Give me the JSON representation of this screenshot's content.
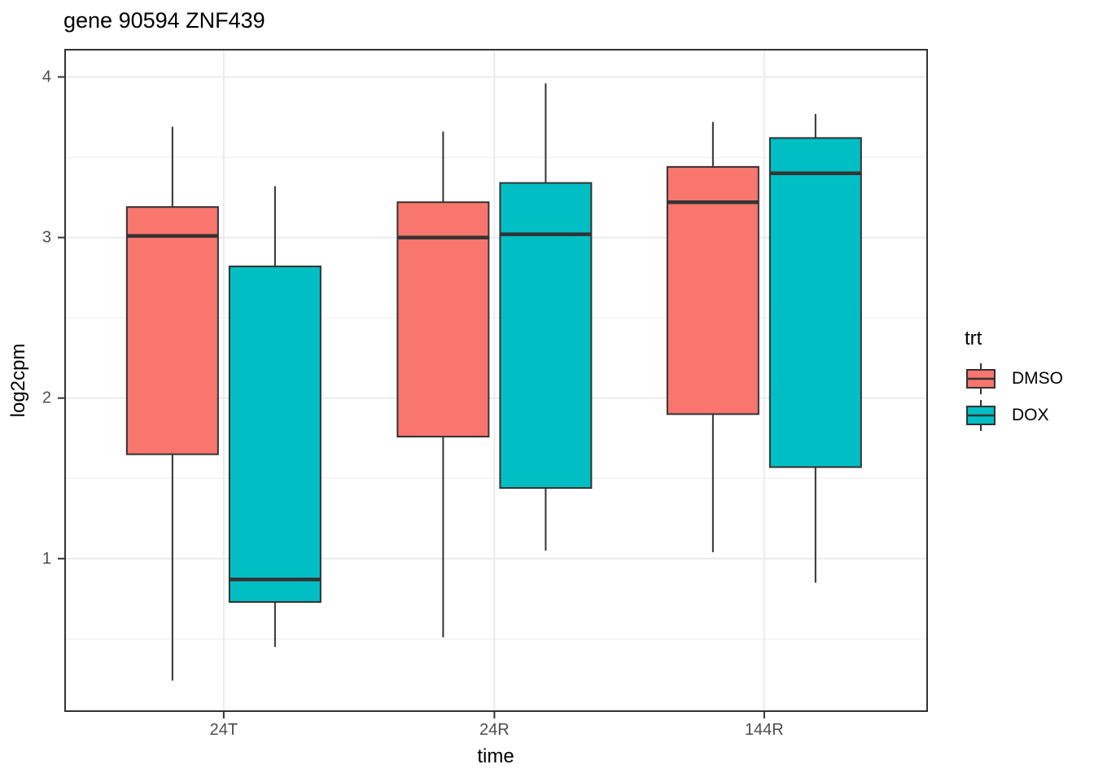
{
  "title": "gene 90594 ZNF439",
  "x_axis": {
    "title": "time",
    "categories": [
      "24T",
      "24R",
      "144R"
    ]
  },
  "y_axis": {
    "title": "log2cpm",
    "tick_labels": [
      "1",
      "2",
      "3",
      "4"
    ]
  },
  "legend": {
    "title": "trt",
    "items": [
      {
        "label": "DMSO",
        "color": "#F8766D"
      },
      {
        "label": "DOX",
        "color": "#00BFC4"
      }
    ]
  },
  "style": {
    "background": "#FFFFFF",
    "panel_background": "#FFFFFF",
    "panel_border": "#333333",
    "box_outline": "#333333",
    "grid_major": "#EBEBEB",
    "grid_minor": "#F0F0F0",
    "tick_color": "#333333",
    "tick_label_color": "#4D4D4D",
    "text_color": "#000000"
  },
  "chart_data": {
    "type": "boxplot",
    "title": "gene 90594 ZNF439",
    "xlabel": "time",
    "ylabel": "log2cpm",
    "categories": [
      "24T",
      "24R",
      "144R"
    ],
    "ylim": [
      0.05,
      4.17
    ],
    "yticks": [
      1,
      2,
      3,
      4
    ],
    "yticks_minor": [
      0.5,
      1.5,
      2.5,
      3.5
    ],
    "grid": true,
    "legend_title": "trt",
    "legend_position": "right",
    "series": [
      {
        "name": "DMSO",
        "color": "#F8766D",
        "boxes": [
          {
            "category": "24T",
            "min": 0.24,
            "q1": 1.65,
            "median": 3.01,
            "q3": 3.19,
            "max": 3.69
          },
          {
            "category": "24R",
            "min": 0.51,
            "q1": 1.76,
            "median": 3.0,
            "q3": 3.22,
            "max": 3.66
          },
          {
            "category": "144R",
            "min": 1.04,
            "q1": 1.9,
            "median": 3.22,
            "q3": 3.44,
            "max": 3.72
          }
        ]
      },
      {
        "name": "DOX",
        "color": "#00BFC4",
        "boxes": [
          {
            "category": "24T",
            "min": 0.45,
            "q1": 0.73,
            "median": 0.87,
            "q3": 2.82,
            "max": 3.32
          },
          {
            "category": "24R",
            "min": 1.05,
            "q1": 1.44,
            "median": 3.02,
            "q3": 3.34,
            "max": 3.96
          },
          {
            "category": "144R",
            "min": 0.85,
            "q1": 1.57,
            "median": 3.4,
            "q3": 3.62,
            "max": 3.77
          }
        ]
      }
    ]
  }
}
